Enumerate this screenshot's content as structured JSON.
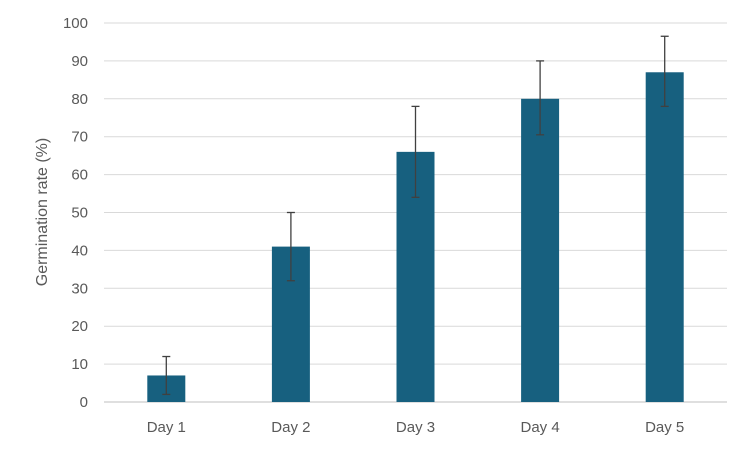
{
  "chart_data": {
    "type": "bar",
    "title": "",
    "xlabel": "",
    "ylabel": "Germination rate (%)",
    "categories": [
      "Day 1",
      "Day 2",
      "Day 3",
      "Day 4",
      "Day 5"
    ],
    "values": [
      7,
      41,
      66,
      80,
      87
    ],
    "error_bars": {
      "upper": [
        12,
        50,
        78,
        90,
        96.5
      ],
      "lower": [
        2,
        32,
        54,
        70.5,
        78
      ]
    },
    "ylim": [
      0,
      100
    ],
    "yticks": [
      0,
      10,
      20,
      30,
      40,
      50,
      60,
      70,
      80,
      90,
      100
    ],
    "grid": true,
    "legend": "none",
    "colors": {
      "bar": "#17607f",
      "error_bar": "#404040",
      "grid": "#d9d9d9",
      "axis_line": "#bfbfbf",
      "text": "#595959"
    }
  }
}
